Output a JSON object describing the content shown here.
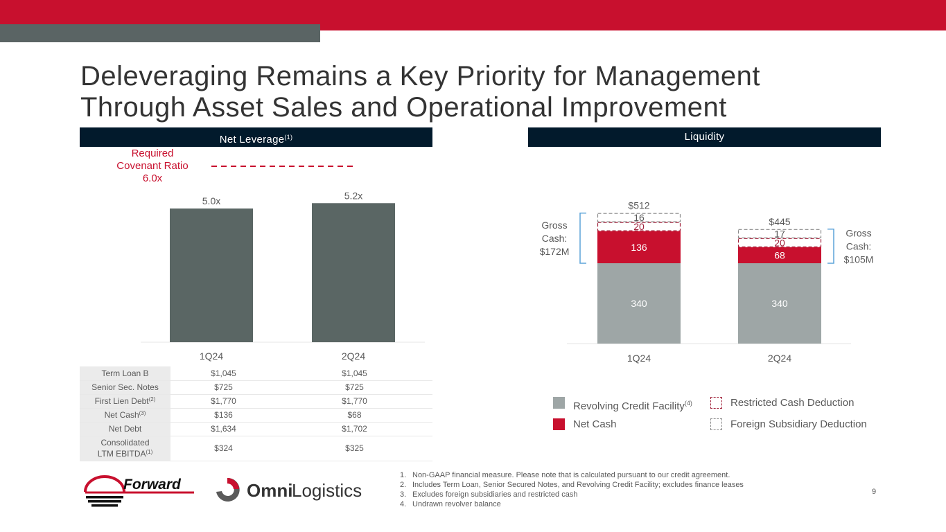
{
  "header": {
    "title_line1": "Deleveraging Remains a Key Priority for Management",
    "title_line2": "Through Asset Sales and Operational Improvement",
    "accent_red": "#c8102e",
    "accent_gray": "#5a6464",
    "section_bg": "#021a2c"
  },
  "net_leverage": {
    "header_label": "Net Leverage",
    "header_footnote": "(1)",
    "covenant_line1": "Required",
    "covenant_line2": "Covenant Ratio",
    "covenant_line3": "6.0x",
    "table": {
      "rows": [
        {
          "label": "Term Loan B",
          "sup": "",
          "q1": "$1,045",
          "q2": "$1,045"
        },
        {
          "label": "Senior Sec. Notes",
          "sup": "",
          "q1": "$725",
          "q2": "$725"
        },
        {
          "label": "First Lien Debt",
          "sup": "(2)",
          "q1": "$1,770",
          "q2": "$1,770"
        },
        {
          "label": "Net Cash",
          "sup": "(3)",
          "q1": "$136",
          "q2": "$68"
        },
        {
          "label": "Net Debt",
          "sup": "",
          "q1": "$1,634",
          "q2": "$1,702"
        },
        {
          "label_line1": "Consolidated",
          "label_line2": "LTM EBITDA",
          "sup": "(1)",
          "q1": "$324",
          "q2": "$325"
        }
      ]
    }
  },
  "liquidity": {
    "header_label": "Liquidity",
    "gross_cash_left": [
      "Gross",
      "Cash:",
      "$172M"
    ],
    "gross_cash_right": [
      "Gross",
      "Cash:",
      "$105M"
    ],
    "legend": [
      {
        "label": "Revolving Credit Facility",
        "sup": "(4)",
        "swatch": "solid",
        "color": "#9ea6a6"
      },
      {
        "label": "Net Cash",
        "sup": "",
        "swatch": "solid",
        "color": "#c8102e"
      },
      {
        "label": "Restricted Cash Deduction",
        "sup": "",
        "swatch": "dashed",
        "color": "#a0213a"
      },
      {
        "label": "Foreign Subsidiary Deduction",
        "sup": "",
        "swatch": "dashed",
        "color": "#8a8a8a"
      }
    ]
  },
  "footnotes": [
    {
      "num": "1.",
      "text": "Non-GAAP financial measure. Please note that is calculated pursuant to our credit agreement."
    },
    {
      "num": "2.",
      "text": "Includes Term Loan, Senior Secured Notes, and Revolving Credit Facility; excludes finance leases"
    },
    {
      "num": "3.",
      "text": "Excludes foreign subsidiaries and restricted cash"
    },
    {
      "num": "4.",
      "text": "Undrawn revolver balance"
    }
  ],
  "page_number": "9",
  "logos": {
    "forward": "Forward",
    "omni_bold": "Omni",
    "omni_light": "Logistics"
  },
  "chart_data": [
    {
      "type": "bar",
      "title": "Net Leverage(1)",
      "categories": [
        "1Q24",
        "2Q24"
      ],
      "values": [
        5.0,
        5.2
      ],
      "value_labels": [
        "5.0x",
        "5.2x"
      ],
      "reference_line": {
        "label": "Required Covenant Ratio 6.0x",
        "value": 6.0
      },
      "xlabel": "",
      "ylabel": "",
      "ylim": [
        0,
        6.4
      ],
      "grid": false,
      "color": "#5a6664"
    },
    {
      "type": "bar",
      "stacked": true,
      "title": "Liquidity",
      "categories": [
        "1Q24",
        "2Q24"
      ],
      "series": [
        {
          "name": "Revolving Credit Facility(4)",
          "values": [
            340,
            340
          ],
          "style": "solid",
          "color": "#9ea6a6"
        },
        {
          "name": "Net Cash",
          "values": [
            136,
            68
          ],
          "style": "solid",
          "color": "#c8102e"
        },
        {
          "name": "Restricted Cash Deduction",
          "values": [
            20,
            20
          ],
          "style": "dashed",
          "color": "#a0213a"
        },
        {
          "name": "Foreign Subsidiary Deduction",
          "values": [
            16,
            17
          ],
          "style": "dashed",
          "color": "#8a8a8a"
        }
      ],
      "totals": [
        "$512",
        "$445"
      ],
      "annotations": [
        "Gross Cash: $172M",
        "Gross Cash: $105M"
      ],
      "xlabel": "",
      "ylabel": "",
      "ylim": [
        0,
        540
      ],
      "grid": false,
      "legend": "bottom"
    }
  ]
}
